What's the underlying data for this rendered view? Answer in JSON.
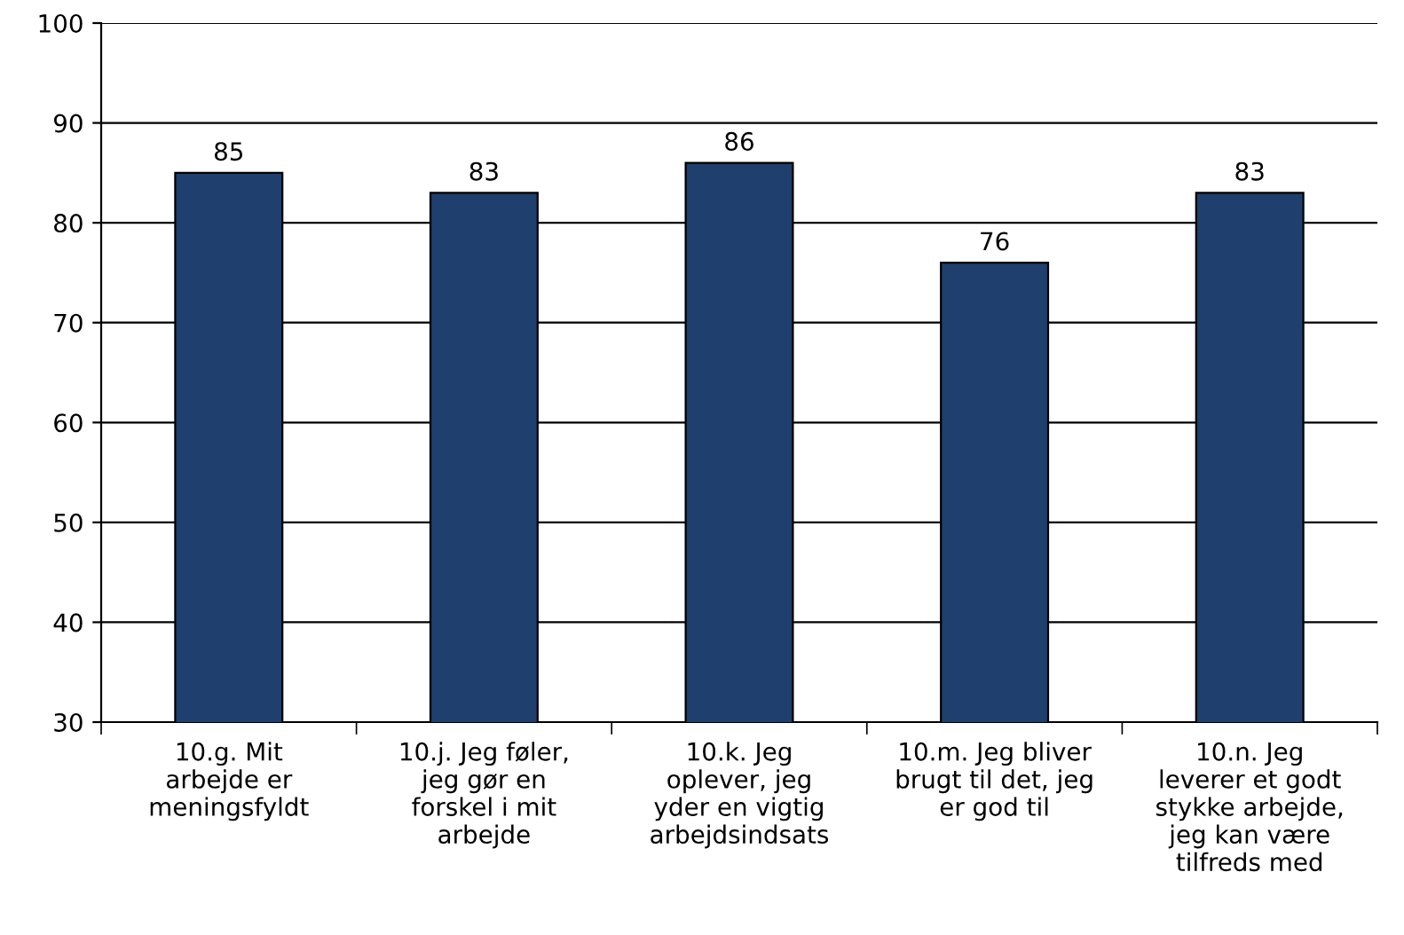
{
  "chart_data": {
    "type": "bar",
    "categories": [
      "10.g. Mit\narbejde er\nmeningsfyldt",
      "10.j. Jeg føler,\njeg gør en\nforskel i mit\narbejde",
      "10.k. Jeg\noplever, jeg\nyder en vigtig\narbejdsindsats",
      "10.m. Jeg bliver\nbrugt til det, jeg\ner god til",
      "10.n. Jeg\nleverer et godt\nstykke arbejde,\njeg kan være\ntilfreds med"
    ],
    "values": [
      85,
      83,
      86,
      76,
      83
    ],
    "color": "#1f3f6e",
    "ylim": [
      30,
      100
    ],
    "yticks": [
      30,
      40,
      50,
      60,
      70,
      80,
      90,
      100
    ],
    "grid": "y",
    "data_labels": true,
    "legend": false
  }
}
